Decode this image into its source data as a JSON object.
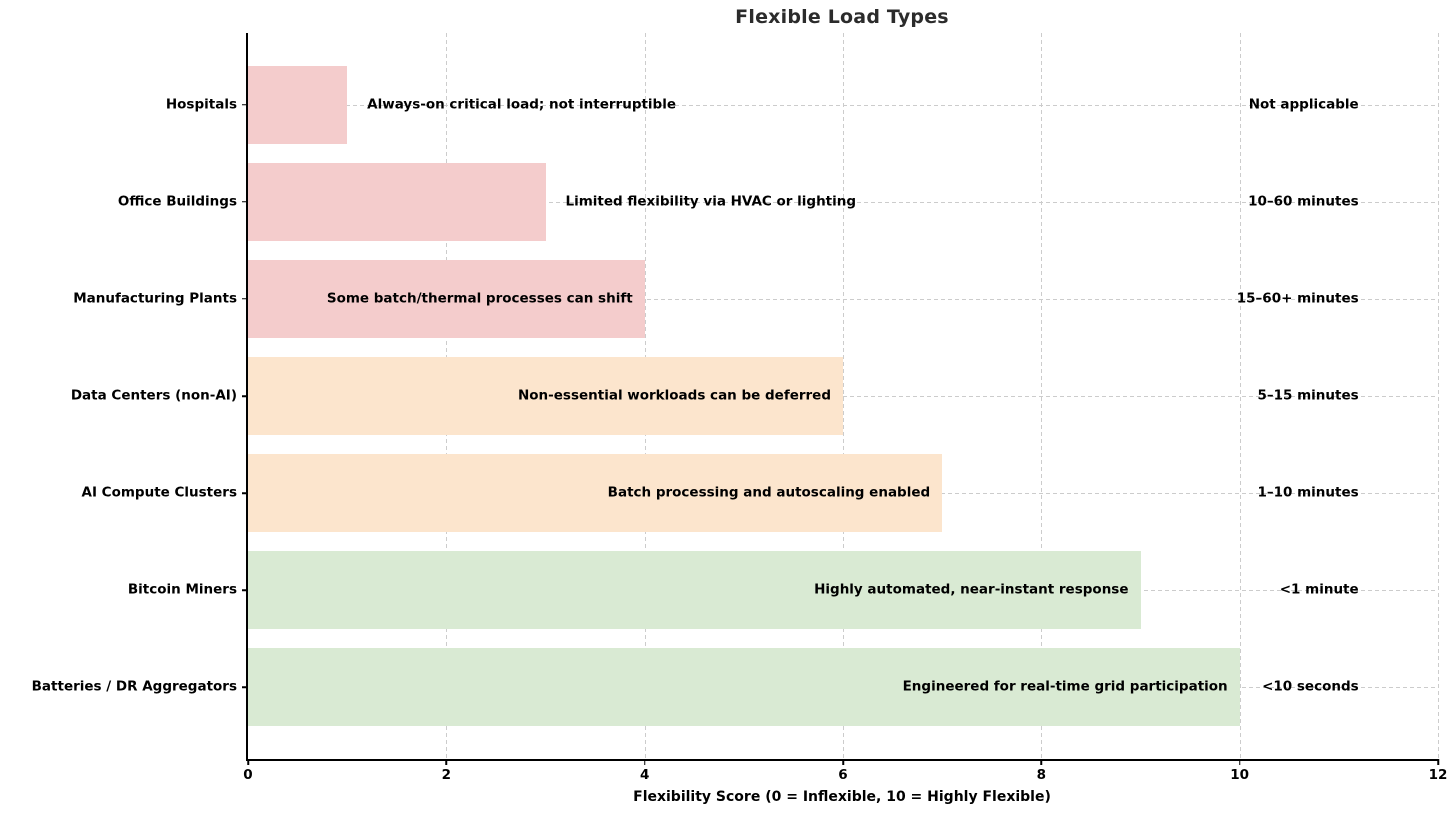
{
  "chart_data": {
    "type": "bar",
    "orientation": "horizontal",
    "title": "Flexible Load Types",
    "xlabel": "Flexibility Score (0 = Inflexible, 10 = Highly Flexible)",
    "xlim": [
      0,
      12
    ],
    "xticks": [
      0,
      2,
      4,
      6,
      8,
      10,
      12
    ],
    "grid": true,
    "legend_position": "none",
    "categories": [
      "Hospitals",
      "Office Buildings",
      "Manufacturing Plants",
      "Data Centers (non-AI)",
      "AI Compute Clusters",
      "Bitcoin Miners",
      "Batteries / DR Aggregators"
    ],
    "values": [
      1,
      3,
      4,
      6,
      7,
      9,
      10
    ],
    "palette": {
      "inflexible": "#f4cccc",
      "moderate": "#fce5cd",
      "flexible": "#d9ead3"
    },
    "grid_color": "#cccccc",
    "title_color": "#2b2b2b",
    "rows": [
      {
        "label": "Hospitals",
        "value": 1,
        "color": "#f4cccc",
        "note": "Always-on critical load; not interruptible",
        "note_placement": "outside",
        "response_time": "Not applicable"
      },
      {
        "label": "Office Buildings",
        "value": 3,
        "color": "#f4cccc",
        "note": "Limited flexibility via HVAC or lighting",
        "note_placement": "outside",
        "response_time": "10–60 minutes"
      },
      {
        "label": "Manufacturing Plants",
        "value": 4,
        "color": "#f4cccc",
        "note": "Some batch/thermal processes can shift",
        "note_placement": "inside",
        "response_time": "15–60+ minutes"
      },
      {
        "label": "Data Centers (non-AI)",
        "value": 6,
        "color": "#fce5cd",
        "note": "Non-essential workloads can be deferred",
        "note_placement": "inside",
        "response_time": "5–15 minutes"
      },
      {
        "label": "AI Compute Clusters",
        "value": 7,
        "color": "#fce5cd",
        "note": "Batch processing and autoscaling enabled",
        "note_placement": "inside",
        "response_time": "1–10 minutes"
      },
      {
        "label": "Bitcoin Miners",
        "value": 9,
        "color": "#d9ead3",
        "note": "Highly automated, near-instant response",
        "note_placement": "inside",
        "response_time": "<1 minute"
      },
      {
        "label": "Batteries / DR Aggregators",
        "value": 10,
        "color": "#d9ead3",
        "note": "Engineered for real-time grid participation",
        "note_placement": "inside",
        "response_time": "<10 seconds"
      }
    ]
  }
}
